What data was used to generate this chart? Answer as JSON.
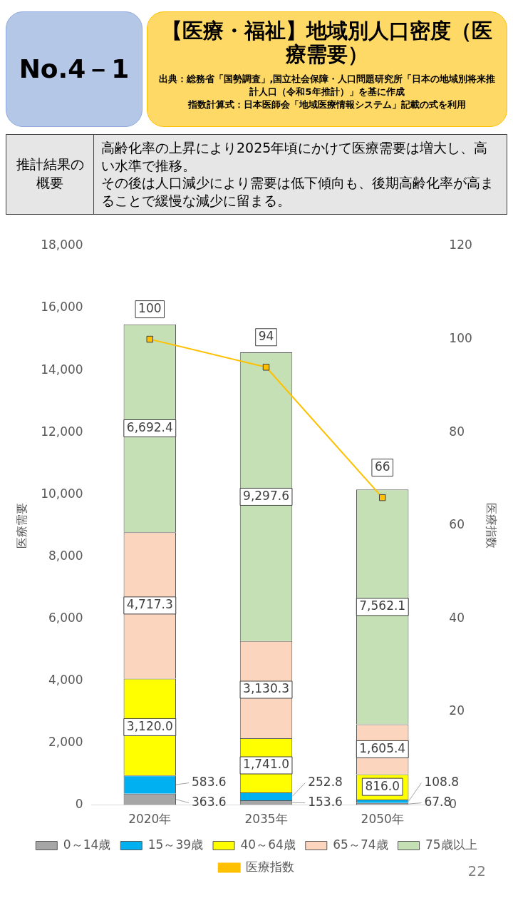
{
  "chart_data": {
    "type": "bar",
    "title": "【医療・福祉】地域別人口密度（医療需要）",
    "annotations": [
      "No.4－1",
      "出典：総務省「国勢調査」,国立社会保障・人口問題研究所「日本の地域別将来推計人口（令和5年推計）」を基に作成",
      "指数計算式：日本医師会「地域医療情報システム」記載の式を利用",
      "推計結果の概要",
      "高齢化率の上昇により2025年頃にかけて医療需要は増大し、高い水準で推移。",
      "その後は人口減少により需要は低下傾向も、後期高齢化率が高まることで緩慢な減少に留まる。",
      "22"
    ],
    "categories": [
      "2020年",
      "2035年",
      "2050年"
    ],
    "stacked": true,
    "series": [
      {
        "name": "0～14歳",
        "color": "#a6a6a6",
        "values": [
          363.6,
          153.6,
          67.8
        ],
        "value_labels": [
          "363.6",
          "153.6",
          "67.8"
        ]
      },
      {
        "name": "15～39歳",
        "color": "#00b0f0",
        "values": [
          583.6,
          252.8,
          108.8
        ],
        "value_labels": [
          "583.6",
          "252.8",
          "108.8"
        ]
      },
      {
        "name": "40～64歳",
        "color": "#ffff00",
        "values": [
          3120.0,
          1741.0,
          816.0
        ],
        "value_labels": [
          "3,120.0",
          "1,741.0",
          "816.0"
        ]
      },
      {
        "name": "65～74歳",
        "color": "#fbd5bd",
        "values": [
          4717.3,
          3130.3,
          1605.4
        ],
        "value_labels": [
          "4,717.3",
          "3,130.3",
          "1,605.4"
        ]
      },
      {
        "name": "75歳以上",
        "color": "#c5e0b4",
        "values": [
          6692.4,
          9297.6,
          7562.1
        ],
        "value_labels": [
          "6,692.4",
          "9,297.6",
          "7,562.1"
        ]
      },
      {
        "name": "医療指数",
        "type": "line",
        "axis": "y2",
        "marker": "square",
        "color": "#ffc000",
        "values": [
          100,
          94,
          66
        ],
        "value_labels": [
          "100",
          "94",
          "66"
        ]
      }
    ],
    "ylabel": "医療需要",
    "y2label": "医療指数",
    "ylim": [
      0,
      18000
    ],
    "yticks": [
      0,
      {
        "value": 2000,
        "label": "2,000"
      },
      {
        "value": 4000,
        "label": "4,000"
      },
      {
        "value": 6000,
        "label": "6,000"
      },
      {
        "value": 8000,
        "label": "8,000"
      },
      {
        "value": 10000,
        "label": "10,000"
      },
      {
        "value": 12000,
        "label": "12,000"
      },
      {
        "value": 14000,
        "label": "14,000"
      },
      {
        "value": 16000,
        "label": "16,000"
      },
      {
        "value": 18000,
        "label": "18,000"
      }
    ],
    "y2lim": [
      0,
      120
    ],
    "y2ticks": [
      0,
      20,
      40,
      60,
      80,
      100,
      120
    ],
    "legend": "bottom"
  }
}
